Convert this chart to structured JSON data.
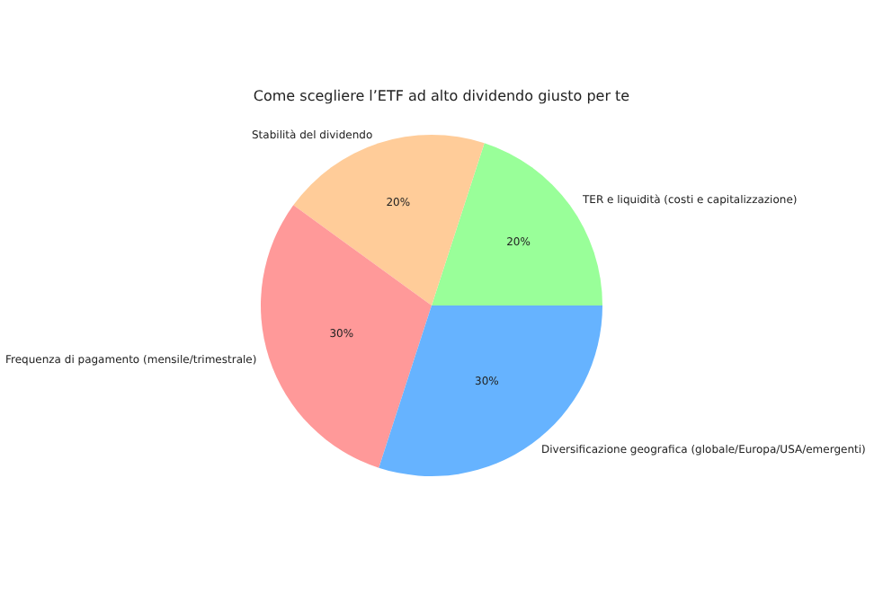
{
  "chart_data": {
    "type": "pie",
    "title": "Come scegliere l’ETF ad alto dividendo giusto per te",
    "categories": [
      "TER e liquidità (costi e capitalizzazione)",
      "Stabilità del dividendo",
      "Frequenza di pagamento (mensile/trimestrale)",
      "Diversificazione geografica (globale/Europa/USA/emergenti)"
    ],
    "values": [
      20,
      20,
      30,
      30
    ],
    "colors": [
      "#99ff99",
      "#ffcc99",
      "#ff9999",
      "#66b3ff"
    ],
    "value_labels": [
      "20%",
      "20%",
      "30%",
      "30%"
    ],
    "legend": false
  }
}
